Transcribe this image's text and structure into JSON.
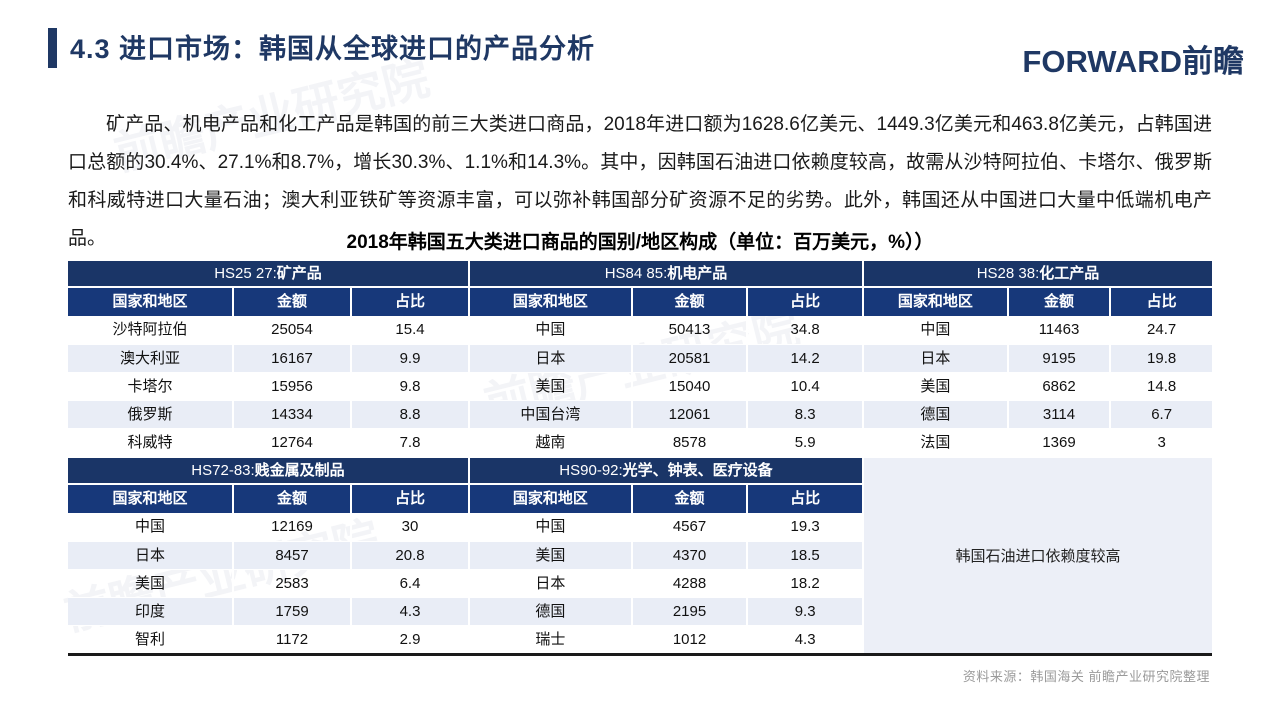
{
  "slide": {
    "title": "4.3 进口市场：韩国从全球进口的产品分析",
    "logo_text": "FORWARD前瞻",
    "paragraph": "矿产品、机电产品和化工产品是韩国的前三大类进口商品，2018年进口额为1628.6亿美元、1449.3亿美元和463.8亿美元，占韩国进口总额的30.4%、27.1%和8.7%，增长30.3%、1.1%和14.3%。其中，因韩国石油进口依赖度较高，故需从沙特阿拉伯、卡塔尔、俄罗斯和科威特进口大量石油；澳大利亚铁矿等资源丰富，可以弥补韩国部分矿资源不足的劣势。此外，韩国还从中国进口大量中低端机电产品。",
    "table_title": "2018年韩国五大类进口商品的国别/地区构成（单位：百万美元，%））",
    "note": "韩国石油进口依赖度较高",
    "source": "资料来源：韩国海关  前瞻产业研究院整理",
    "watermark": "前瞻产业研究院"
  },
  "colors": {
    "accent_navy": "#1F3864",
    "group_header_bg": "#1A3567",
    "column_header_bg": "#17387A",
    "alt_row_bg": "#E9EDF6",
    "note_box_bg": "#ECEFF7",
    "table_bottom_border": "#1a1a1a",
    "source_gray": "#9a9a9a"
  },
  "columns": [
    "国家和地区",
    "金额",
    "占比"
  ],
  "tables": [
    {
      "code": "HS25 27:",
      "name": "矿产品",
      "rows": [
        [
          "沙特阿拉伯",
          "25054",
          "15.4"
        ],
        [
          "澳大利亚",
          "16167",
          "9.9"
        ],
        [
          "卡塔尔",
          "15956",
          "9.8"
        ],
        [
          "俄罗斯",
          "14334",
          "8.8"
        ],
        [
          "科威特",
          "12764",
          "7.8"
        ]
      ]
    },
    {
      "code": "HS84 85:",
      "name": "机电产品",
      "rows": [
        [
          "中国",
          "50413",
          "34.8"
        ],
        [
          "日本",
          "20581",
          "14.2"
        ],
        [
          "美国",
          "15040",
          "10.4"
        ],
        [
          "中国台湾",
          "12061",
          "8.3"
        ],
        [
          "越南",
          "8578",
          "5.9"
        ]
      ]
    },
    {
      "code": "HS28 38:",
      "name": "化工产品",
      "rows": [
        [
          "中国",
          "11463",
          "24.7"
        ],
        [
          "日本",
          "9195",
          "19.8"
        ],
        [
          "美国",
          "6862",
          "14.8"
        ],
        [
          "德国",
          "3114",
          "6.7"
        ],
        [
          "法国",
          "1369",
          "3"
        ]
      ]
    },
    {
      "code": "HS72-83:",
      "name": "贱金属及制品",
      "rows": [
        [
          "中国",
          "12169",
          "30"
        ],
        [
          "日本",
          "8457",
          "20.8"
        ],
        [
          "美国",
          "2583",
          "6.4"
        ],
        [
          "印度",
          "1759",
          "4.3"
        ],
        [
          "智利",
          "1172",
          "2.9"
        ]
      ]
    },
    {
      "code": "HS90-92:",
      "name": "光学、钟表、医疗设备",
      "rows": [
        [
          "中国",
          "4567",
          "19.3"
        ],
        [
          "美国",
          "4370",
          "18.5"
        ],
        [
          "日本",
          "4288",
          "18.2"
        ],
        [
          "德国",
          "2195",
          "9.3"
        ],
        [
          "瑞士",
          "1012",
          "4.3"
        ]
      ]
    }
  ]
}
